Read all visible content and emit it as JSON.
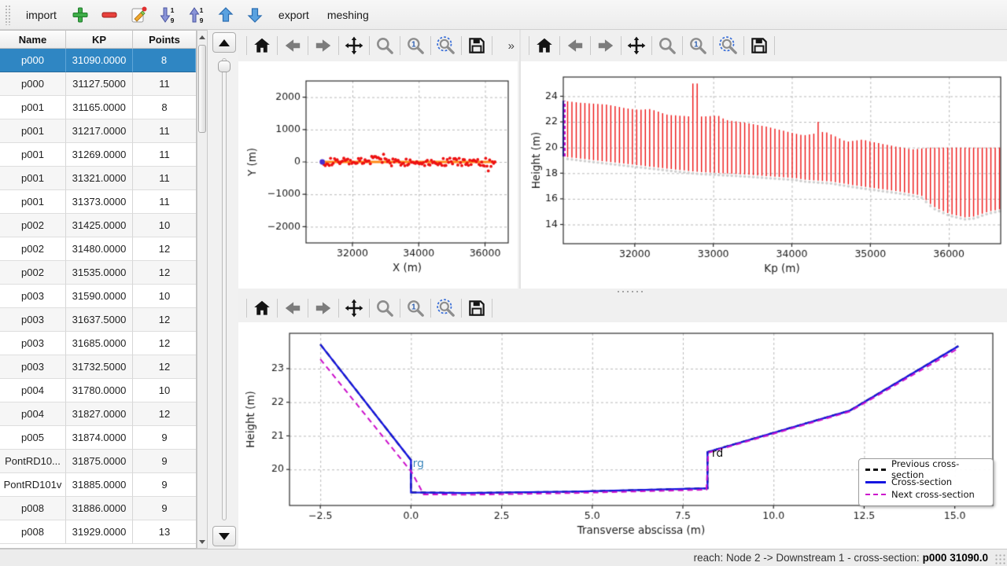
{
  "main_toolbar": {
    "items": [
      {
        "name": "import-button",
        "label": "import"
      },
      {
        "name": "add-cross-section-button",
        "icon": "plus-icon"
      },
      {
        "name": "remove-cross-section-button",
        "icon": "minus-icon"
      },
      {
        "name": "edit-cross-section-button",
        "icon": "edit-icon"
      },
      {
        "name": "sort-descending-button",
        "icon": "sort-descending-icon"
      },
      {
        "name": "sort-ascending-button",
        "icon": "sort-ascending-icon"
      },
      {
        "name": "move-up-button",
        "icon": "arrow-up-icon"
      },
      {
        "name": "move-down-button",
        "icon": "arrow-down-icon"
      },
      {
        "name": "export-button",
        "label": "export"
      },
      {
        "name": "meshing-button",
        "label": "meshing"
      }
    ]
  },
  "table": {
    "columns": [
      "Name",
      "KP",
      "Points"
    ],
    "selected_row": 0,
    "rows": [
      [
        "p000",
        "31090.0000",
        "8"
      ],
      [
        "p000",
        "31127.5000",
        "11"
      ],
      [
        "p001",
        "31165.0000",
        "8"
      ],
      [
        "p001",
        "31217.0000",
        "11"
      ],
      [
        "p001",
        "31269.0000",
        "11"
      ],
      [
        "p001",
        "31321.0000",
        "11"
      ],
      [
        "p001",
        "31373.0000",
        "11"
      ],
      [
        "p002",
        "31425.0000",
        "10"
      ],
      [
        "p002",
        "31480.0000",
        "12"
      ],
      [
        "p002",
        "31535.0000",
        "12"
      ],
      [
        "p003",
        "31590.0000",
        "10"
      ],
      [
        "p003",
        "31637.5000",
        "12"
      ],
      [
        "p003",
        "31685.0000",
        "12"
      ],
      [
        "p003",
        "31732.5000",
        "12"
      ],
      [
        "p004",
        "31780.0000",
        "10"
      ],
      [
        "p004",
        "31827.0000",
        "12"
      ],
      [
        "p005",
        "31874.0000",
        "9"
      ],
      [
        "PontRD10...",
        "31875.0000",
        "9"
      ],
      [
        "PontRD101v",
        "31885.0000",
        "9"
      ],
      [
        "p008",
        "31886.0000",
        "9"
      ],
      [
        "p008",
        "31929.0000",
        "13"
      ]
    ]
  },
  "mpl_toolbar": {
    "icons": [
      "home",
      "back",
      "forward",
      "pan",
      "zoom",
      "zoom-1",
      "zoom-extent",
      "save"
    ],
    "overflow_label": "»"
  },
  "colors": {
    "selection_blue": "#2f86c3",
    "plot_red": "#ee1212",
    "plot_blue": "#1515e0",
    "plot_magenta": "#cc10cc",
    "plot_orange": "#ff8c1a",
    "plot_gray_marker": "#cfcfcf",
    "rg_label_blue": "#4a8fc0"
  },
  "chart_data": [
    {
      "type": "scatter",
      "name": "plan-view",
      "xlabel": "X (m)",
      "ylabel": "Y (m)",
      "xlim": [
        30600,
        36700
      ],
      "ylim": [
        -2500,
        2500
      ],
      "xticks": [
        32000,
        34000,
        36000
      ],
      "yticks": [
        -2000,
        -1000,
        0,
        1000,
        2000
      ],
      "grid": true,
      "series": [
        {
          "name": "river-axis-points",
          "color": "#ee1212",
          "marker": "dot",
          "x_start": 31140,
          "x_end": 36300,
          "count": 130,
          "y": 0
        },
        {
          "name": "river-centerline",
          "color": "#ff8c1a",
          "style": "line",
          "x_start": 31140,
          "x_end": 36300,
          "y": 0
        },
        {
          "name": "selected-cross-section",
          "color": "#4a30cf",
          "marker": "dot",
          "x": 31090,
          "y": 0
        }
      ]
    },
    {
      "type": "interval-lines",
      "name": "longitudinal-view",
      "xlabel": "Kp (m)",
      "ylabel": "Height (m)",
      "xlim": [
        31090,
        36660
      ],
      "ylim": [
        12.5,
        25.5
      ],
      "xticks": [
        32000,
        33000,
        34000,
        35000,
        36000
      ],
      "yticks": [
        14,
        16,
        18,
        20,
        22,
        24
      ],
      "grid": true,
      "line_color": "#ee1212",
      "line_spacing_m": 55,
      "kp_start": 31145,
      "kp_end": 36655,
      "selected": {
        "kp": 31090,
        "bottom": 19.3,
        "top": 23.65,
        "color": "#1515e0",
        "overlay_color": "#cc10cc"
      },
      "top_envelope": [
        [
          31090,
          23.65
        ],
        [
          31300,
          23.5
        ],
        [
          31650,
          23.35
        ],
        [
          31900,
          23.05
        ],
        [
          32050,
          22.95
        ],
        [
          32200,
          23.0
        ],
        [
          32420,
          22.55
        ],
        [
          32760,
          22.4
        ],
        [
          32950,
          22.45
        ],
        [
          33060,
          22.5
        ],
        [
          33160,
          22.15
        ],
        [
          33400,
          21.95
        ],
        [
          33700,
          21.6
        ],
        [
          34000,
          21.15
        ],
        [
          34150,
          20.95
        ],
        [
          34300,
          21.1
        ],
        [
          34420,
          21.25
        ],
        [
          34560,
          20.85
        ],
        [
          34700,
          20.45
        ],
        [
          34900,
          20.62
        ],
        [
          35100,
          20.35
        ],
        [
          35350,
          20.05
        ],
        [
          35550,
          19.85
        ],
        [
          35750,
          20.0
        ],
        [
          36660,
          20.0
        ]
      ],
      "bottom_envelope": [
        [
          31090,
          19.3
        ],
        [
          31500,
          19.0
        ],
        [
          32000,
          18.65
        ],
        [
          32500,
          18.3
        ],
        [
          32800,
          18.1
        ],
        [
          33100,
          18.0
        ],
        [
          33400,
          17.9
        ],
        [
          33800,
          17.72
        ],
        [
          34050,
          17.62
        ],
        [
          34150,
          17.5
        ],
        [
          34500,
          17.35
        ],
        [
          34800,
          17.05
        ],
        [
          35100,
          16.8
        ],
        [
          35400,
          16.55
        ],
        [
          35650,
          16.25
        ],
        [
          35800,
          15.4
        ],
        [
          36000,
          14.85
        ],
        [
          36200,
          14.55
        ],
        [
          36320,
          14.62
        ],
        [
          36500,
          15.0
        ],
        [
          36660,
          15.2
        ]
      ],
      "spikes": [
        [
          32740,
          25.0
        ],
        [
          32795,
          25.0
        ],
        [
          34335,
          22.0
        ]
      ]
    },
    {
      "type": "line",
      "name": "cross-section-profile",
      "xlabel": "Transverse abscissa (m)",
      "ylabel": "Height (m)",
      "xlim": [
        -3.35,
        16.05
      ],
      "ylim": [
        18.93,
        24.05
      ],
      "xticks": [
        -2.5,
        0.0,
        2.5,
        5.0,
        7.5,
        10.0,
        12.5,
        15.0
      ],
      "yticks": [
        20,
        21,
        22,
        23
      ],
      "grid": true,
      "annotations": [
        {
          "text": "rg",
          "x": 0.05,
          "y": 20.0,
          "color": "#4a8fc0"
        },
        {
          "text": "rd",
          "x": 8.3,
          "y": 20.3,
          "color": "#111111"
        }
      ],
      "legend": {
        "position": "lower right",
        "entries": [
          {
            "label": "Previous cross-section",
            "color": "#111111",
            "dash": true,
            "width": 3
          },
          {
            "label": "Cross-section",
            "color": "#1515e0",
            "dash": false,
            "width": 3
          },
          {
            "label": "Next cross-section",
            "color": "#cc10cc",
            "dash": true,
            "width": 2
          }
        ]
      },
      "series": [
        {
          "name": "previous",
          "color": "#111111",
          "dash": true,
          "points": [
            [
              -2.5,
              23.72
            ],
            [
              0.0,
              20.28
            ],
            [
              0.0,
              19.32
            ],
            [
              1.5,
              19.3
            ],
            [
              4.5,
              19.34
            ],
            [
              8.18,
              19.44
            ],
            [
              8.18,
              20.52
            ],
            [
              12.1,
              21.75
            ],
            [
              15.1,
              23.67
            ]
          ]
        },
        {
          "name": "current",
          "color": "#1515e0",
          "dash": false,
          "points": [
            [
              -2.5,
              23.72
            ],
            [
              0.0,
              20.28
            ],
            [
              0.0,
              19.32
            ],
            [
              1.5,
              19.3
            ],
            [
              4.5,
              19.34
            ],
            [
              8.18,
              19.44
            ],
            [
              8.18,
              20.52
            ],
            [
              12.1,
              21.75
            ],
            [
              15.1,
              23.67
            ]
          ]
        },
        {
          "name": "next",
          "color": "#cc10cc",
          "dash": true,
          "points": [
            [
              -2.5,
              23.28
            ],
            [
              0.02,
              19.92
            ],
            [
              0.35,
              19.26
            ],
            [
              1.6,
              19.25
            ],
            [
              4.5,
              19.3
            ],
            [
              8.15,
              19.4
            ],
            [
              8.2,
              20.5
            ],
            [
              12.1,
              21.72
            ],
            [
              15.05,
              23.57
            ]
          ]
        }
      ]
    }
  ],
  "status_bar": {
    "prefix": "reach: Node 2 -> Downstream 1 - cross-section:",
    "highlight": "p000 31090.0"
  }
}
